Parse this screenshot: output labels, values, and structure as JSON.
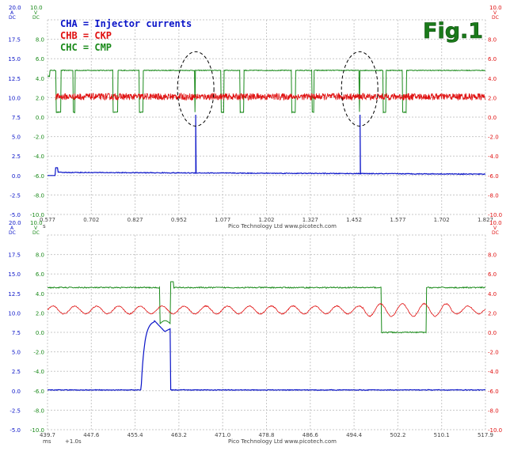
{
  "figure_label": "Fig.1",
  "colors": {
    "cha": "#0a14c8",
    "chb": "#e01010",
    "chc": "#1a8a1a",
    "grid": "#c8c8c8",
    "axis_text": "#444444",
    "annot": "#000000"
  },
  "footer": "Pico Technology Ltd   www.picotech.com",
  "legend": [
    {
      "label": "CHA = Injector currents",
      "color": "#0a14c8"
    },
    {
      "label": "CHB = CKP",
      "color": "#e01010"
    },
    {
      "label": "CHC = CMP",
      "color": "#1a8a1a"
    }
  ],
  "chart_data": [
    {
      "type": "line",
      "title": "",
      "x_unit": "s",
      "x_ticks": [
        "0.577",
        "0.702",
        "0.827",
        "0.952",
        "1.077",
        "1.202",
        "1.327",
        "1.452",
        "1.577",
        "1.702",
        "1.827"
      ],
      "xlim": [
        0.577,
        1.827
      ],
      "axes": [
        {
          "channel": "A",
          "unit": "A DC",
          "color": "#0a14c8",
          "ticks": [
            "20.0",
            "17.5",
            "15.0",
            "12.5",
            "10.0",
            "7.5",
            "5.0",
            "2.5",
            "0.0",
            "-2.5",
            "-5.0"
          ],
          "range": [
            -5,
            20
          ]
        },
        {
          "channel": "C",
          "unit": "V DC",
          "color": "#1a8a1a",
          "ticks": [
            "10.0",
            "8.0",
            "6.0",
            "4.0",
            "2.0",
            "0.0",
            "-2.0",
            "-4.0",
            "-6.0",
            "-8.0",
            "-10.0"
          ],
          "range": [
            -10,
            10
          ]
        },
        {
          "channel": "B",
          "unit": "V DC",
          "color": "#e01010",
          "ticks": [
            "10.0",
            "8.0",
            "6.0",
            "4.0",
            "2.0",
            "0.0",
            "-2.0",
            "-4.0",
            "-6.0",
            "-8.0",
            "-10.0"
          ],
          "range": [
            -10,
            10
          ]
        }
      ],
      "series": [
        {
          "name": "CHA = Injector currents",
          "color": "#0a14c8",
          "axis": "A",
          "baseline": 0.0,
          "step_on_at": 0.6,
          "step_level": 0.4,
          "pulses": [
            {
              "x": 1.0,
              "peak": 7.8
            },
            {
              "x": 1.469,
              "peak": 7.8
            }
          ]
        },
        {
          "name": "CHB = CKP",
          "color": "#e01010",
          "axis": "B",
          "level": 2.1,
          "noise_amplitude": 0.35,
          "starts_at": 0.6
        },
        {
          "name": "CHC = CMP",
          "color": "#1a8a1a",
          "axis": "C",
          "high": 4.8,
          "low": 0.5,
          "low_intervals": [
            [
              0.602,
              0.615
            ],
            [
              0.65,
              0.656
            ],
            [
              0.764,
              0.777
            ],
            [
              0.839,
              0.85
            ],
            [
              1.072,
              1.08
            ],
            [
              1.126,
              1.137
            ],
            [
              1.273,
              1.285
            ],
            [
              1.332,
              1.338
            ],
            [
              1.535,
              1.543
            ],
            [
              1.59,
              1.601
            ]
          ],
          "spikes": [
            0.998,
            1.467
          ]
        }
      ],
      "annotations": [
        {
          "type": "ellipse",
          "x": 1.0
        },
        {
          "type": "ellipse",
          "x": 1.468
        }
      ]
    },
    {
      "type": "line",
      "title": "",
      "x_unit": "ms",
      "x_offset_label": "+1.0s",
      "x_ticks": [
        "439.7",
        "447.6",
        "455.4",
        "463.2",
        "471.0",
        "478.8",
        "486.6",
        "494.4",
        "502.2",
        "510.1",
        "517.9"
      ],
      "xlim": [
        439.7,
        517.9
      ],
      "axes": [
        {
          "channel": "A",
          "unit": "A DC",
          "color": "#0a14c8",
          "ticks": [
            "20.0",
            "17.5",
            "15.0",
            "12.5",
            "10.0",
            "7.5",
            "5.0",
            "2.5",
            "0.0",
            "-2.5",
            "-5.0"
          ],
          "range": [
            -5,
            20
          ]
        },
        {
          "channel": "C",
          "unit": "V DC",
          "color": "#1a8a1a",
          "ticks": [
            "10.0",
            "8.0",
            "6.0",
            "4.0",
            "2.0",
            "0.0",
            "-2.0",
            "-4.0",
            "-6.0",
            "-8.0",
            "-10.0"
          ],
          "range": [
            -10,
            10
          ]
        },
        {
          "channel": "B",
          "unit": "V DC",
          "color": "#e01010",
          "ticks": [
            "10.0",
            "8.0",
            "6.0",
            "4.0",
            "2.0",
            "0.0",
            "-2.0",
            "-4.0",
            "-6.0",
            "-8.0",
            "-10.0"
          ],
          "range": [
            -10,
            10
          ]
        }
      ],
      "series": [
        {
          "name": "CHA = Injector currents",
          "color": "#0a14c8",
          "axis": "A",
          "baseline": 0.1,
          "pulse_start": 456.4,
          "pulse_end": 461.7,
          "peak": 9.0
        },
        {
          "name": "CHB = CKP",
          "color": "#e01010",
          "axis": "B",
          "level": 2.3,
          "amplitude": 0.4,
          "period_ms": 3.9
        },
        {
          "name": "CHC = CMP",
          "color": "#1a8a1a",
          "axis": "C",
          "high": 4.6,
          "low": 0.0,
          "drop_at": 459.8,
          "notch_end": 461.6,
          "low_start": 499.3,
          "low_end": 507.3
        }
      ]
    }
  ]
}
